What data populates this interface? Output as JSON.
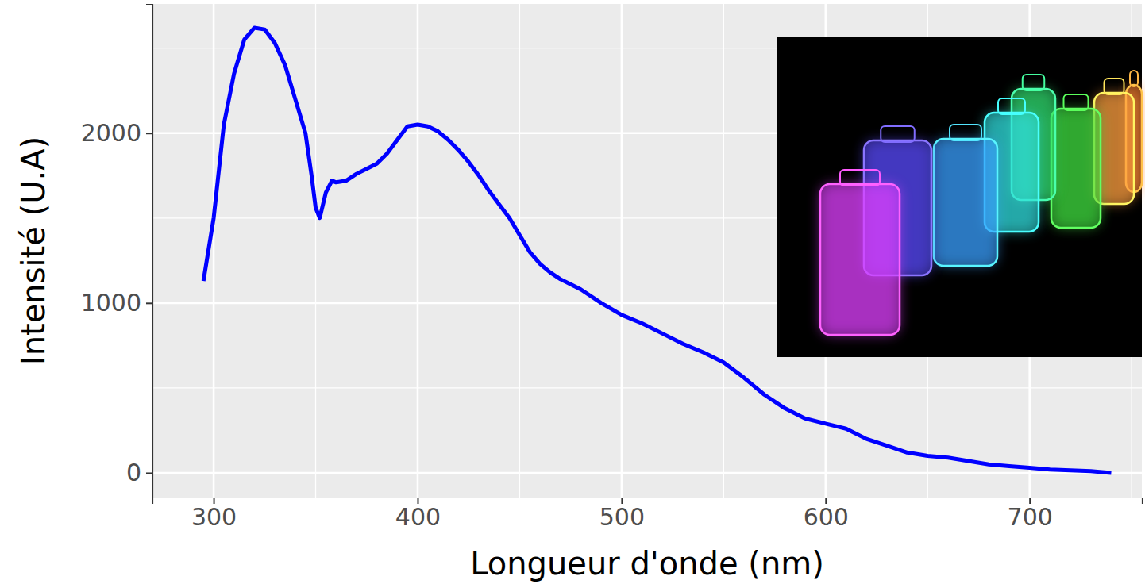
{
  "chart_data": {
    "type": "line",
    "x_label": "Longueur d'onde (nm)",
    "y_label": "Intensité (U.A)",
    "x": [
      295,
      300,
      305,
      310,
      315,
      320,
      325,
      330,
      335,
      340,
      345,
      348,
      350,
      352,
      355,
      358,
      360,
      365,
      370,
      375,
      380,
      385,
      390,
      395,
      400,
      405,
      410,
      415,
      420,
      425,
      430,
      435,
      440,
      445,
      450,
      455,
      460,
      465,
      470,
      475,
      480,
      490,
      500,
      510,
      520,
      530,
      540,
      550,
      560,
      570,
      580,
      590,
      600,
      610,
      620,
      630,
      640,
      650,
      660,
      670,
      680,
      690,
      700,
      710,
      720,
      730,
      740
    ],
    "values": [
      1130,
      1500,
      2050,
      2350,
      2550,
      2620,
      2610,
      2530,
      2400,
      2200,
      2000,
      1750,
      1560,
      1500,
      1650,
      1720,
      1710,
      1720,
      1760,
      1790,
      1820,
      1880,
      1960,
      2040,
      2050,
      2040,
      2010,
      1960,
      1900,
      1830,
      1750,
      1660,
      1580,
      1500,
      1400,
      1300,
      1230,
      1180,
      1140,
      1110,
      1080,
      1000,
      930,
      880,
      820,
      760,
      710,
      650,
      560,
      460,
      380,
      320,
      290,
      260,
      200,
      160,
      120,
      100,
      90,
      70,
      50,
      40,
      30,
      20,
      15,
      10,
      0
    ],
    "color": "#0000ff",
    "xlim": [
      270,
      755
    ],
    "xticks": [
      300,
      400,
      500,
      600,
      700
    ],
    "ylim": [
      -145,
      2760
    ],
    "yticks": [
      0,
      1000,
      2000
    ],
    "grid": true
  }
}
